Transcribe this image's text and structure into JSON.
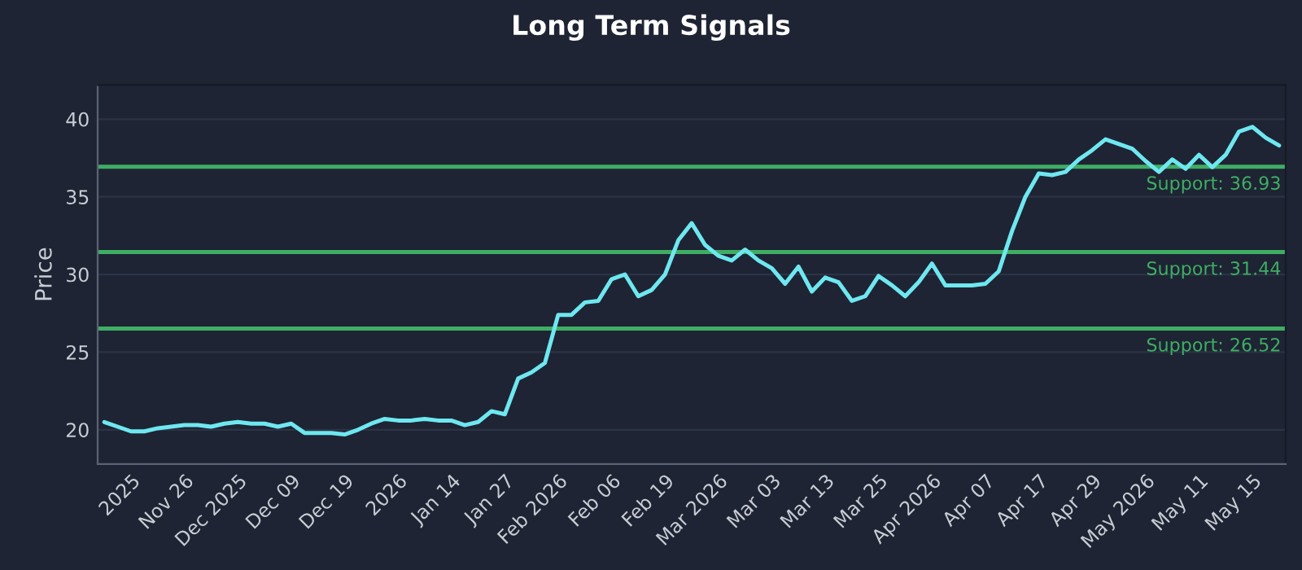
{
  "chart_data": {
    "type": "line",
    "title": "Long Term Signals",
    "ylabel": "Price",
    "categories": [
      null,
      null,
      "2025",
      null,
      null,
      null,
      "Nov 26",
      null,
      null,
      null,
      "Dec 2025",
      null,
      null,
      null,
      "Dec 09",
      null,
      null,
      null,
      "Dec 19",
      null,
      null,
      null,
      "2026",
      null,
      null,
      null,
      "Jan 14",
      null,
      null,
      null,
      "Jan 27",
      null,
      null,
      null,
      "Feb 2026",
      null,
      null,
      null,
      "Feb 06",
      null,
      null,
      null,
      "Feb 19",
      null,
      null,
      null,
      "Mar 2026",
      null,
      null,
      null,
      "Mar 03",
      null,
      null,
      null,
      "Mar 13",
      null,
      null,
      null,
      "Mar 25",
      null,
      null,
      null,
      "Apr 2026",
      null,
      null,
      null,
      "Apr 07",
      null,
      null,
      null,
      "Apr 17",
      null,
      null,
      null,
      "Apr 29",
      null,
      null,
      null,
      "May 2026",
      null,
      null,
      null,
      "May 11",
      null,
      null,
      null,
      "May 15",
      null,
      null
    ],
    "series": [
      {
        "color": "#6ee7f0",
        "values": [
          20.5,
          20.2,
          19.9,
          19.9,
          20.1,
          20.2,
          20.3,
          20.3,
          20.2,
          20.4,
          20.5,
          20.4,
          20.4,
          20.2,
          20.4,
          19.8,
          19.8,
          19.8,
          19.7,
          20.0,
          20.4,
          20.7,
          20.6,
          20.6,
          20.7,
          20.6,
          20.6,
          20.3,
          20.5,
          21.2,
          21.0,
          23.3,
          23.7,
          24.3,
          27.4,
          27.4,
          28.2,
          28.3,
          29.7,
          30.0,
          28.6,
          29.0,
          30.0,
          32.2,
          33.3,
          31.9,
          31.2,
          30.9,
          31.6,
          30.9,
          30.4,
          29.4,
          30.5,
          28.9,
          29.8,
          29.5,
          28.3,
          28.6,
          29.9,
          29.3,
          28.6,
          29.5,
          30.7,
          29.3,
          29.3,
          29.3,
          29.4,
          30.2,
          32.8,
          35.0,
          36.5,
          36.4,
          36.6,
          37.4,
          38.0,
          38.7,
          38.4,
          38.1,
          37.3,
          36.6,
          37.4,
          36.8,
          37.7,
          36.9,
          37.7,
          39.2,
          39.5,
          38.8,
          38.3
        ]
      }
    ],
    "ylim": [
      17.8,
      42.2
    ],
    "yticks": [
      20,
      25,
      30,
      35,
      40
    ],
    "grid": "y",
    "line_style": "solid",
    "ref_lines": [
      {
        "axis": "y",
        "value": 36.93,
        "label": "Support: 36.93",
        "color": "#3fae64"
      },
      {
        "axis": "y",
        "value": 31.44,
        "label": "Support: 31.44",
        "color": "#3fae64"
      },
      {
        "axis": "y",
        "value": 26.52,
        "label": "Support: 26.52",
        "color": "#3fae64"
      }
    ]
  }
}
